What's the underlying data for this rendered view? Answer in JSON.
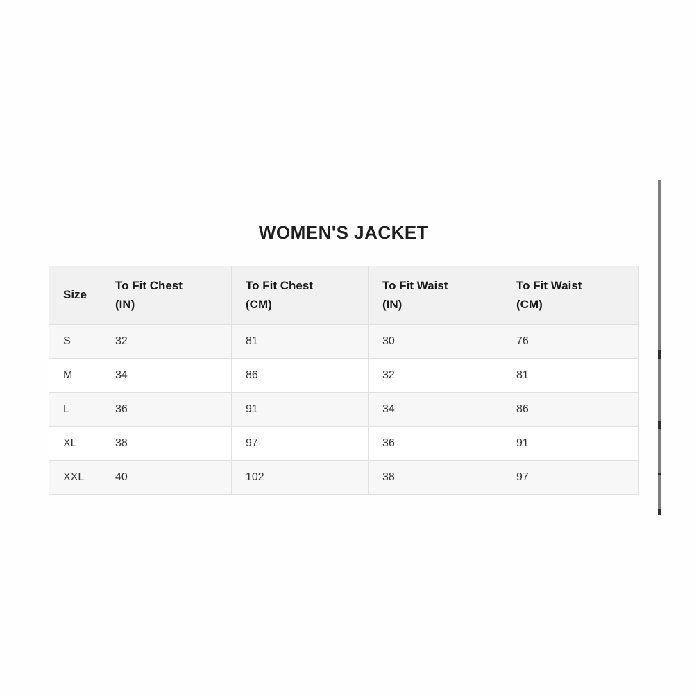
{
  "page": {
    "title": "WOMEN'S JACKET"
  },
  "size_chart": {
    "columns": [
      {
        "label": "Size",
        "unit": ""
      },
      {
        "label": "To Fit Chest",
        "unit": "(IN)"
      },
      {
        "label": "To Fit Chest",
        "unit": "(CM)"
      },
      {
        "label": "To Fit Waist",
        "unit": "(IN)"
      },
      {
        "label": "To Fit Waist",
        "unit": "(CM)"
      }
    ],
    "rows": [
      {
        "cells": [
          "S",
          "32",
          "81",
          "30",
          "76"
        ]
      },
      {
        "cells": [
          "M",
          "34",
          "86",
          "32",
          "81"
        ]
      },
      {
        "cells": [
          "L",
          "36",
          "91",
          "34",
          "86"
        ]
      },
      {
        "cells": [
          "XL",
          "38",
          "97",
          "36",
          "91"
        ]
      },
      {
        "cells": [
          "XXL",
          "40",
          "102",
          "38",
          "97"
        ]
      }
    ]
  },
  "colors": {
    "header_bg": "#f1f1f1",
    "row_alt_bg": "#f7f7f7",
    "row_bg": "#ffffff",
    "border": "#e0e0e0",
    "title_text": "#1f1f1f",
    "cell_text": "#333333",
    "scrollbar": "#7f7f7f"
  }
}
